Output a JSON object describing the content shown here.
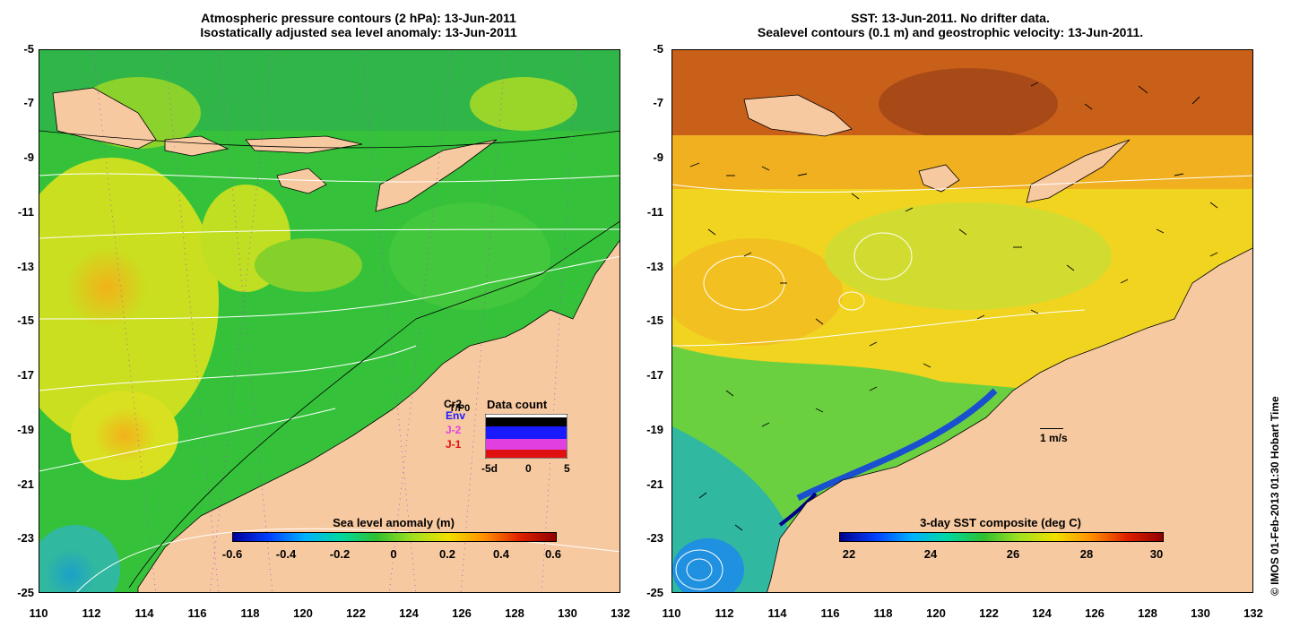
{
  "left_panel": {
    "title_line1": "Atmospheric pressure contours (2 hPa): 13-Jun-2011",
    "title_line2": "Isostatically adjusted sea level anomaly: 13-Jun-2011",
    "colorbar_title": "Sea level anomaly (m)",
    "colorbar_ticks": [
      "-0.6",
      "-0.4",
      "-0.2",
      "0",
      "0.2",
      "0.4",
      "0.6"
    ],
    "data_count": {
      "title": "Data count",
      "missions": [
        "Cr2",
        "T/P0",
        "Env",
        "J-2",
        "J-1"
      ],
      "mission_colors": [
        "#000000",
        "#000000",
        "#1a1aff",
        "#e040e0",
        "#e01010"
      ],
      "axis_ticks": [
        "-5d",
        "0",
        "5"
      ]
    }
  },
  "right_panel": {
    "title_line1": "SST: 13-Jun-2011. No drifter data.",
    "title_line2": "Sealevel contours (0.1 m) and geostrophic velocity: 13-Jun-2011.",
    "colorbar_title": "3-day SST composite (deg C)",
    "colorbar_ticks": [
      "22",
      "24",
      "26",
      "28",
      "30"
    ],
    "velocity_scale_label": "1 m/s"
  },
  "axes": {
    "y_ticks": [
      "-5",
      "-7",
      "-9",
      "-11",
      "-13",
      "-15",
      "-17",
      "-19",
      "-21",
      "-23",
      "-25"
    ],
    "x_ticks": [
      "110",
      "112",
      "114",
      "116",
      "118",
      "120",
      "122",
      "124",
      "126",
      "128",
      "130",
      "132"
    ]
  },
  "credit": "© IMOS 01-Feb-2013 01:30 Hobart Time",
  "colors": {
    "land": "#f7c9a0",
    "sla_low": "#0018a0",
    "sla_mid": "#39c94a",
    "sla_high": "#a80000",
    "sst_warm": "#c8601a"
  }
}
